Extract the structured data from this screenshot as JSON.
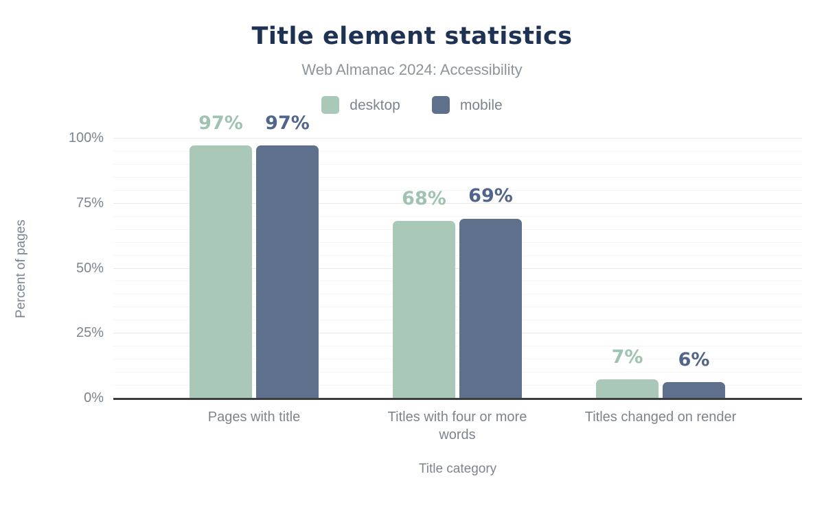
{
  "chart_data": {
    "type": "bar",
    "title": "Title element statistics",
    "subtitle": "Web Almanac 2024: Accessibility",
    "xlabel": "Title category",
    "ylabel": "Percent of pages",
    "categories": [
      "Pages with title",
      "Titles with four or more words",
      "Titles changed on render"
    ],
    "series": [
      {
        "name": "desktop",
        "color": "#a9c8b8",
        "label_color": "#9ec4b1",
        "values": [
          97,
          68,
          7
        ]
      },
      {
        "name": "mobile",
        "color": "#5f708c",
        "label_color": "#51658c",
        "values": [
          97,
          69,
          6
        ]
      }
    ],
    "value_suffix": "%",
    "ylim": [
      0,
      100
    ],
    "yticks": [
      0,
      25,
      50,
      75,
      100
    ],
    "ytick_suffix": "%",
    "minor_tick_step": 5,
    "grid": true,
    "legend_position": "top"
  },
  "colors": {
    "title": "#1e3253",
    "subtitle": "#8e9499",
    "axis_text": "#7c848d",
    "axis_line": "#3a3c3e",
    "grid_major": "#e9e9e9",
    "grid_minor": "#f4f4f4",
    "desktop": "#a9c8b8",
    "mobile": "#5f708c",
    "background": "#ffffff"
  }
}
